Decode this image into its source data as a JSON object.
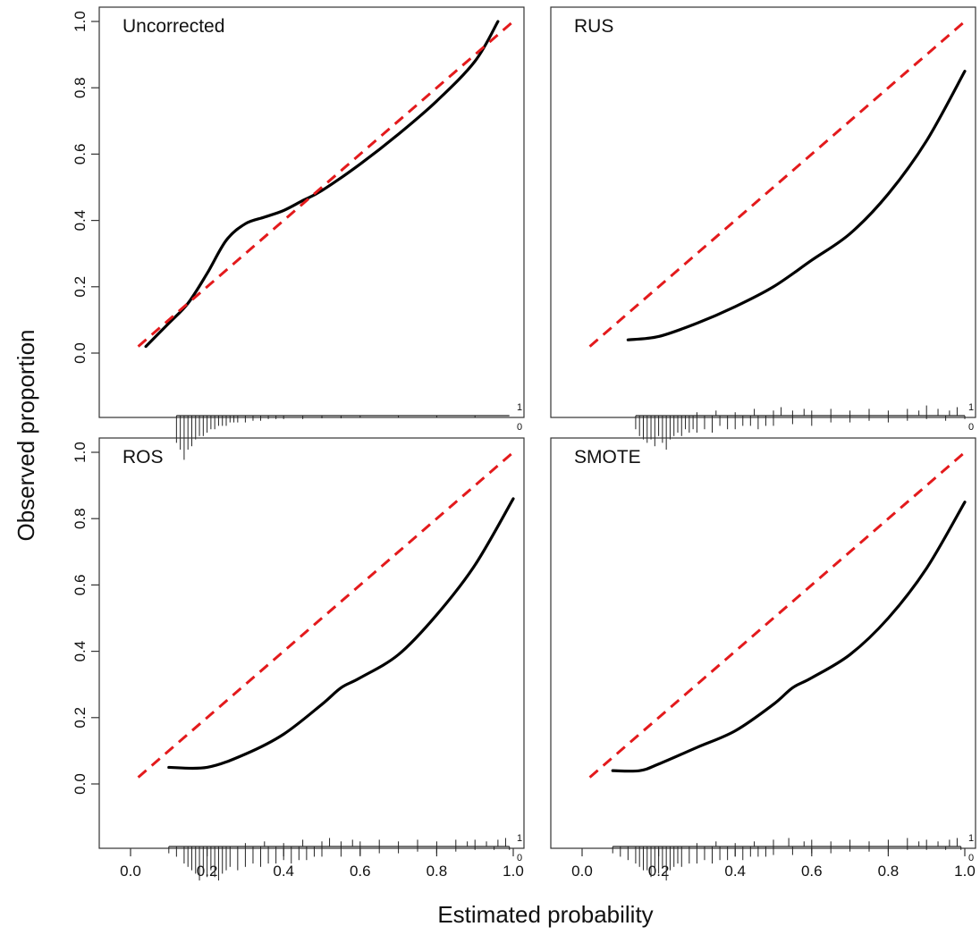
{
  "figure": {
    "xlabel": "Estimated probability",
    "ylabel": "Observed proportion"
  },
  "colors": {
    "calibration_curve": "#000000",
    "reference_line": "#e31a1c",
    "spike": "#222222",
    "frame": "#333333"
  },
  "chart_data": [
    {
      "type": "line",
      "title": "Uncorrected",
      "xlabel": "",
      "ylabel": "",
      "xlim": [
        0.0,
        1.0
      ],
      "ylim": [
        0.0,
        1.0
      ],
      "xticks": [
        "0.0",
        "0.2",
        "0.4",
        "0.6",
        "0.8",
        "1.0"
      ],
      "yticks": [
        "0.0",
        "0.2",
        "0.4",
        "0.6",
        "0.8",
        "1.0"
      ],
      "show_xticks": false,
      "show_yticks": true,
      "series": [
        {
          "style": "solid",
          "x": [
            0.04,
            0.1,
            0.15,
            0.2,
            0.25,
            0.3,
            0.35,
            0.4,
            0.45,
            0.5,
            0.6,
            0.7,
            0.8,
            0.9,
            0.96
          ],
          "y": [
            0.02,
            0.09,
            0.15,
            0.24,
            0.34,
            0.39,
            0.41,
            0.43,
            0.46,
            0.49,
            0.57,
            0.66,
            0.76,
            0.88,
            1.0
          ]
        },
        {
          "style": "dashed",
          "x": [
            0.02,
            1.0
          ],
          "y": [
            0.02,
            1.0
          ]
        }
      ],
      "spike_labels": [
        "1",
        "0"
      ],
      "spikes_event": [],
      "spikes_nonevent": {
        "x": [
          0.12,
          0.13,
          0.14,
          0.15,
          0.16,
          0.17,
          0.18,
          0.19,
          0.2,
          0.21,
          0.22,
          0.23,
          0.24,
          0.25,
          0.26,
          0.27,
          0.28,
          0.3,
          0.32,
          0.34,
          0.36,
          0.38,
          0.4,
          0.45,
          0.5,
          0.55,
          0.6,
          0.7,
          0.8,
          0.9
        ],
        "h": [
          0.08,
          0.1,
          0.13,
          0.1,
          0.09,
          0.07,
          0.06,
          0.06,
          0.05,
          0.04,
          0.04,
          0.03,
          0.03,
          0.03,
          0.02,
          0.02,
          0.02,
          0.02,
          0.015,
          0.015,
          0.01,
          0.01,
          0.01,
          0.01,
          0.008,
          0.008,
          0.006,
          0.006,
          0.005,
          0.005
        ]
      }
    },
    {
      "type": "line",
      "title": "RUS",
      "xlabel": "",
      "ylabel": "",
      "xlim": [
        0.0,
        1.0
      ],
      "ylim": [
        0.0,
        1.0
      ],
      "xticks": [
        "0.0",
        "0.2",
        "0.4",
        "0.6",
        "0.8",
        "1.0"
      ],
      "yticks": [
        "0.0",
        "0.2",
        "0.4",
        "0.6",
        "0.8",
        "1.0"
      ],
      "show_xticks": false,
      "show_yticks": false,
      "series": [
        {
          "style": "solid",
          "x": [
            0.12,
            0.2,
            0.3,
            0.4,
            0.5,
            0.6,
            0.7,
            0.8,
            0.9,
            1.0
          ],
          "y": [
            0.04,
            0.05,
            0.09,
            0.14,
            0.2,
            0.28,
            0.36,
            0.48,
            0.64,
            0.85
          ]
        },
        {
          "style": "dashed",
          "x": [
            0.02,
            1.0
          ],
          "y": [
            0.02,
            1.0
          ]
        }
      ],
      "spike_labels": [
        "1",
        "0"
      ],
      "spikes_event": {
        "x": [
          0.3,
          0.35,
          0.4,
          0.45,
          0.5,
          0.52,
          0.55,
          0.58,
          0.6,
          0.65,
          0.7,
          0.75,
          0.8,
          0.85,
          0.88,
          0.9,
          0.93,
          0.96,
          0.98
        ],
        "h": [
          0.01,
          0.015,
          0.01,
          0.02,
          0.015,
          0.025,
          0.015,
          0.02,
          0.015,
          0.02,
          0.015,
          0.02,
          0.015,
          0.02,
          0.015,
          0.03,
          0.02,
          0.015,
          0.025
        ]
      },
      "spikes_nonevent": {
        "x": [
          0.14,
          0.15,
          0.16,
          0.17,
          0.18,
          0.19,
          0.2,
          0.21,
          0.22,
          0.23,
          0.24,
          0.25,
          0.26,
          0.27,
          0.28,
          0.29,
          0.3,
          0.32,
          0.34,
          0.36,
          0.38,
          0.4,
          0.42,
          0.44,
          0.46,
          0.48,
          0.5,
          0.55,
          0.6,
          0.65,
          0.7,
          0.75,
          0.8,
          0.85,
          0.9,
          0.95,
          1.0
        ],
        "h": [
          0.04,
          0.06,
          0.07,
          0.08,
          0.07,
          0.09,
          0.06,
          0.08,
          0.1,
          0.07,
          0.06,
          0.05,
          0.06,
          0.04,
          0.05,
          0.04,
          0.05,
          0.04,
          0.05,
          0.03,
          0.04,
          0.04,
          0.03,
          0.03,
          0.04,
          0.03,
          0.03,
          0.025,
          0.03,
          0.02,
          0.02,
          0.015,
          0.02,
          0.015,
          0.01,
          0.015,
          0.01
        ]
      }
    },
    {
      "type": "line",
      "title": "ROS",
      "xlabel": "",
      "ylabel": "",
      "xlim": [
        0.0,
        1.0
      ],
      "ylim": [
        0.0,
        1.0
      ],
      "xticks": [
        "0.0",
        "0.2",
        "0.4",
        "0.6",
        "0.8",
        "1.0"
      ],
      "yticks": [
        "0.0",
        "0.2",
        "0.4",
        "0.6",
        "0.8",
        "1.0"
      ],
      "show_xticks": true,
      "show_yticks": true,
      "series": [
        {
          "style": "solid",
          "x": [
            0.1,
            0.2,
            0.3,
            0.4,
            0.5,
            0.55,
            0.6,
            0.7,
            0.8,
            0.9,
            1.0
          ],
          "y": [
            0.05,
            0.05,
            0.09,
            0.15,
            0.24,
            0.29,
            0.32,
            0.39,
            0.51,
            0.66,
            0.86
          ]
        },
        {
          "style": "dashed",
          "x": [
            0.02,
            1.0
          ],
          "y": [
            0.02,
            1.0
          ]
        }
      ],
      "spike_labels": [
        "1",
        "0"
      ],
      "spikes_event": {
        "x": [
          0.3,
          0.35,
          0.4,
          0.45,
          0.5,
          0.52,
          0.55,
          0.58,
          0.6,
          0.65,
          0.7,
          0.75,
          0.8,
          0.85,
          0.88,
          0.9,
          0.93,
          0.96,
          0.98
        ],
        "h": [
          0.01,
          0.015,
          0.01,
          0.02,
          0.015,
          0.025,
          0.015,
          0.02,
          0.015,
          0.02,
          0.015,
          0.02,
          0.015,
          0.02,
          0.015,
          0.02,
          0.015,
          0.02,
          0.025
        ]
      },
      "spikes_nonevent": {
        "x": [
          0.1,
          0.12,
          0.14,
          0.15,
          0.16,
          0.17,
          0.18,
          0.19,
          0.2,
          0.21,
          0.22,
          0.23,
          0.24,
          0.25,
          0.26,
          0.28,
          0.3,
          0.32,
          0.34,
          0.36,
          0.38,
          0.4,
          0.42,
          0.44,
          0.46,
          0.48,
          0.5,
          0.55,
          0.6,
          0.65,
          0.7,
          0.75,
          0.8,
          0.85,
          0.9,
          0.95,
          0.99
        ],
        "h": [
          0.02,
          0.03,
          0.05,
          0.06,
          0.07,
          0.08,
          0.1,
          0.08,
          0.09,
          0.07,
          0.09,
          0.1,
          0.08,
          0.07,
          0.06,
          0.07,
          0.06,
          0.05,
          0.06,
          0.05,
          0.05,
          0.04,
          0.05,
          0.04,
          0.04,
          0.03,
          0.03,
          0.03,
          0.025,
          0.02,
          0.02,
          0.015,
          0.02,
          0.015,
          0.01,
          0.01,
          0.01
        ]
      }
    },
    {
      "type": "line",
      "title": "SMOTE",
      "xlabel": "",
      "ylabel": "",
      "xlim": [
        0.0,
        1.0
      ],
      "ylim": [
        0.0,
        1.0
      ],
      "xticks": [
        "0.0",
        "0.2",
        "0.4",
        "0.6",
        "0.8",
        "1.0"
      ],
      "yticks": [
        "0.0",
        "0.2",
        "0.4",
        "0.6",
        "0.8",
        "1.0"
      ],
      "show_xticks": true,
      "show_yticks": false,
      "series": [
        {
          "style": "solid",
          "x": [
            0.08,
            0.15,
            0.2,
            0.3,
            0.4,
            0.5,
            0.55,
            0.6,
            0.7,
            0.8,
            0.9,
            1.0
          ],
          "y": [
            0.04,
            0.04,
            0.06,
            0.11,
            0.16,
            0.24,
            0.29,
            0.32,
            0.39,
            0.5,
            0.65,
            0.85
          ]
        },
        {
          "style": "dashed",
          "x": [
            0.02,
            1.0
          ],
          "y": [
            0.02,
            1.0
          ]
        }
      ],
      "spike_labels": [
        "1",
        "0"
      ],
      "spikes_event": {
        "x": [
          0.3,
          0.35,
          0.4,
          0.45,
          0.5,
          0.54,
          0.58,
          0.6,
          0.65,
          0.7,
          0.75,
          0.8,
          0.85,
          0.88,
          0.9,
          0.93,
          0.96,
          0.98
        ],
        "h": [
          0.01,
          0.015,
          0.01,
          0.015,
          0.02,
          0.025,
          0.015,
          0.02,
          0.015,
          0.02,
          0.015,
          0.02,
          0.025,
          0.015,
          0.02,
          0.015,
          0.02,
          0.025
        ]
      },
      "spikes_nonevent": {
        "x": [
          0.08,
          0.1,
          0.12,
          0.14,
          0.15,
          0.16,
          0.17,
          0.18,
          0.19,
          0.2,
          0.21,
          0.22,
          0.23,
          0.24,
          0.25,
          0.26,
          0.28,
          0.3,
          0.32,
          0.34,
          0.36,
          0.38,
          0.4,
          0.42,
          0.44,
          0.46,
          0.48,
          0.5,
          0.55,
          0.6,
          0.65,
          0.7,
          0.75,
          0.8,
          0.85,
          0.9,
          0.95,
          0.99
        ],
        "h": [
          0.02,
          0.03,
          0.04,
          0.05,
          0.06,
          0.07,
          0.07,
          0.09,
          0.07,
          0.08,
          0.06,
          0.1,
          0.07,
          0.06,
          0.05,
          0.06,
          0.05,
          0.05,
          0.04,
          0.05,
          0.04,
          0.04,
          0.03,
          0.04,
          0.03,
          0.03,
          0.03,
          0.025,
          0.025,
          0.02,
          0.02,
          0.015,
          0.015,
          0.015,
          0.01,
          0.01,
          0.01,
          0.01
        ]
      }
    }
  ]
}
